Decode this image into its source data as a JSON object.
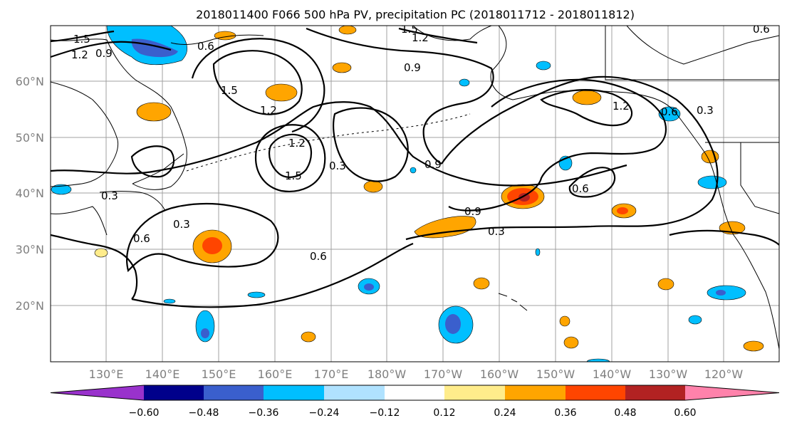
{
  "title": "2018011400 F066 500 hPa PV, precipitation PC (2018011712 - 2018011812)",
  "lat_labels": [
    "60°N",
    "50°N",
    "40°N",
    "30°N",
    "20°N"
  ],
  "lon_labels": [
    "130°E",
    "140°E",
    "150°E",
    "160°E",
    "170°E",
    "180°W",
    "170°W",
    "160°W",
    "150°W",
    "140°W",
    "130°W",
    "120°W"
  ],
  "contour_labels": [
    "1.5",
    "1.2",
    "0.9",
    "0.6",
    "0.6",
    "0.6",
    "1.5",
    "1.2",
    "1.2",
    "1.5",
    "0.3",
    "0.9",
    "1.2",
    "1.5",
    "0.9",
    "0.3",
    "0.3",
    "0.6",
    "0.3",
    "0.6",
    "0.9",
    "1.2",
    "0.3",
    "0.6"
  ],
  "colorbar": {
    "ticks": [
      "−0.60",
      "−0.48",
      "−0.36",
      "−0.24",
      "−0.12",
      "0.12",
      "0.24",
      "0.36",
      "0.48",
      "0.60"
    ],
    "colors": [
      "#9932CC",
      "#00008B",
      "#3A5FCD",
      "#00BFFF",
      "#B0E2FF",
      "#FFFFFF",
      "#FFEC8B",
      "#FFA500",
      "#FF4500",
      "#B22222",
      "#FF82AB"
    ]
  }
}
